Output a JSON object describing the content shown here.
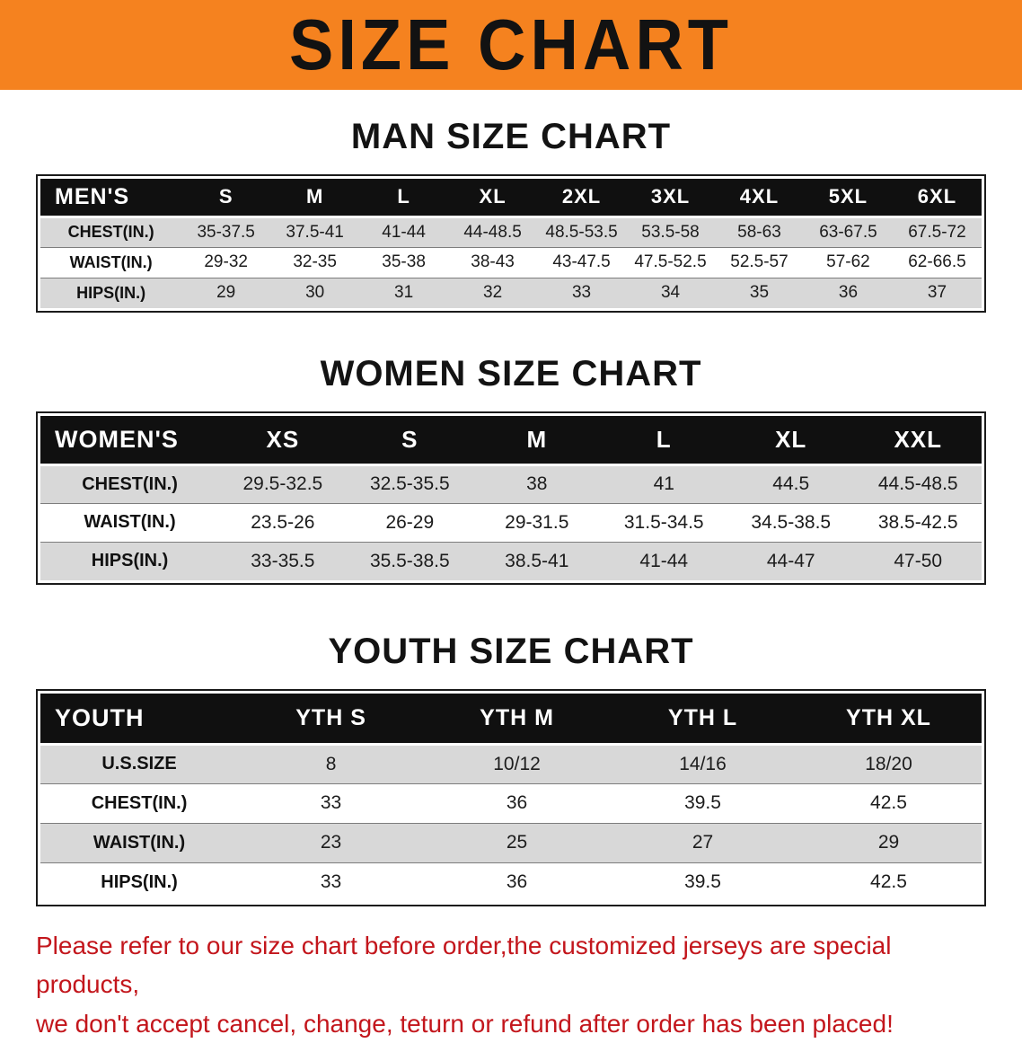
{
  "banner": {
    "title": "SIZE CHART",
    "bg_color": "#F5821F"
  },
  "theme": {
    "header_bg": "#101010",
    "stripe": "#D8D8D8"
  },
  "sections": [
    {
      "id": "men",
      "heading": "MAN SIZE CHART",
      "table": {
        "header": [
          "MEN'S",
          "S",
          "M",
          "L",
          "XL",
          "2XL",
          "3XL",
          "4XL",
          "5XL",
          "6XL"
        ],
        "rows": [
          [
            "CHEST(IN.)",
            "35-37.5",
            "37.5-41",
            "41-44",
            "44-48.5",
            "48.5-53.5",
            "53.5-58",
            "58-63",
            "63-67.5",
            "67.5-72"
          ],
          [
            "WAIST(IN.)",
            "29-32",
            "32-35",
            "35-38",
            "38-43",
            "43-47.5",
            "47.5-52.5",
            "52.5-57",
            "57-62",
            "62-66.5"
          ],
          [
            "HIPS(IN.)",
            "29",
            "30",
            "31",
            "32",
            "33",
            "34",
            "35",
            "36",
            "37"
          ]
        ]
      }
    },
    {
      "id": "women",
      "heading": "WOMEN SIZE CHART",
      "table": {
        "header": [
          "WOMEN'S",
          "XS",
          "S",
          "M",
          "L",
          "XL",
          "XXL"
        ],
        "rows": [
          [
            "CHEST(IN.)",
            "29.5-32.5",
            "32.5-35.5",
            "38",
            "41",
            "44.5",
            "44.5-48.5"
          ],
          [
            "WAIST(IN.)",
            "23.5-26",
            "26-29",
            "29-31.5",
            "31.5-34.5",
            "34.5-38.5",
            "38.5-42.5"
          ],
          [
            "HIPS(IN.)",
            "33-35.5",
            "35.5-38.5",
            "38.5-41",
            "41-44",
            "44-47",
            "47-50"
          ]
        ]
      }
    },
    {
      "id": "youth",
      "heading": "YOUTH SIZE CHART",
      "table": {
        "header": [
          "YOUTH",
          "YTH S",
          "YTH M",
          "YTH L",
          "YTH XL"
        ],
        "rows": [
          [
            "U.S.SIZE",
            "8",
            "10/12",
            "14/16",
            "18/20"
          ],
          [
            "CHEST(IN.)",
            "33",
            "36",
            "39.5",
            "42.5"
          ],
          [
            "WAIST(IN.)",
            "23",
            "25",
            "27",
            "29"
          ],
          [
            "HIPS(IN.)",
            "33",
            "36",
            "39.5",
            "42.5"
          ]
        ]
      }
    }
  ],
  "disclaimer": {
    "color": "#C3161C",
    "lines": [
      "Please refer to our size chart before order,the customized jerseys are special products,",
      "we don't accept cancel, change, teturn or refund after order has been placed!"
    ]
  }
}
